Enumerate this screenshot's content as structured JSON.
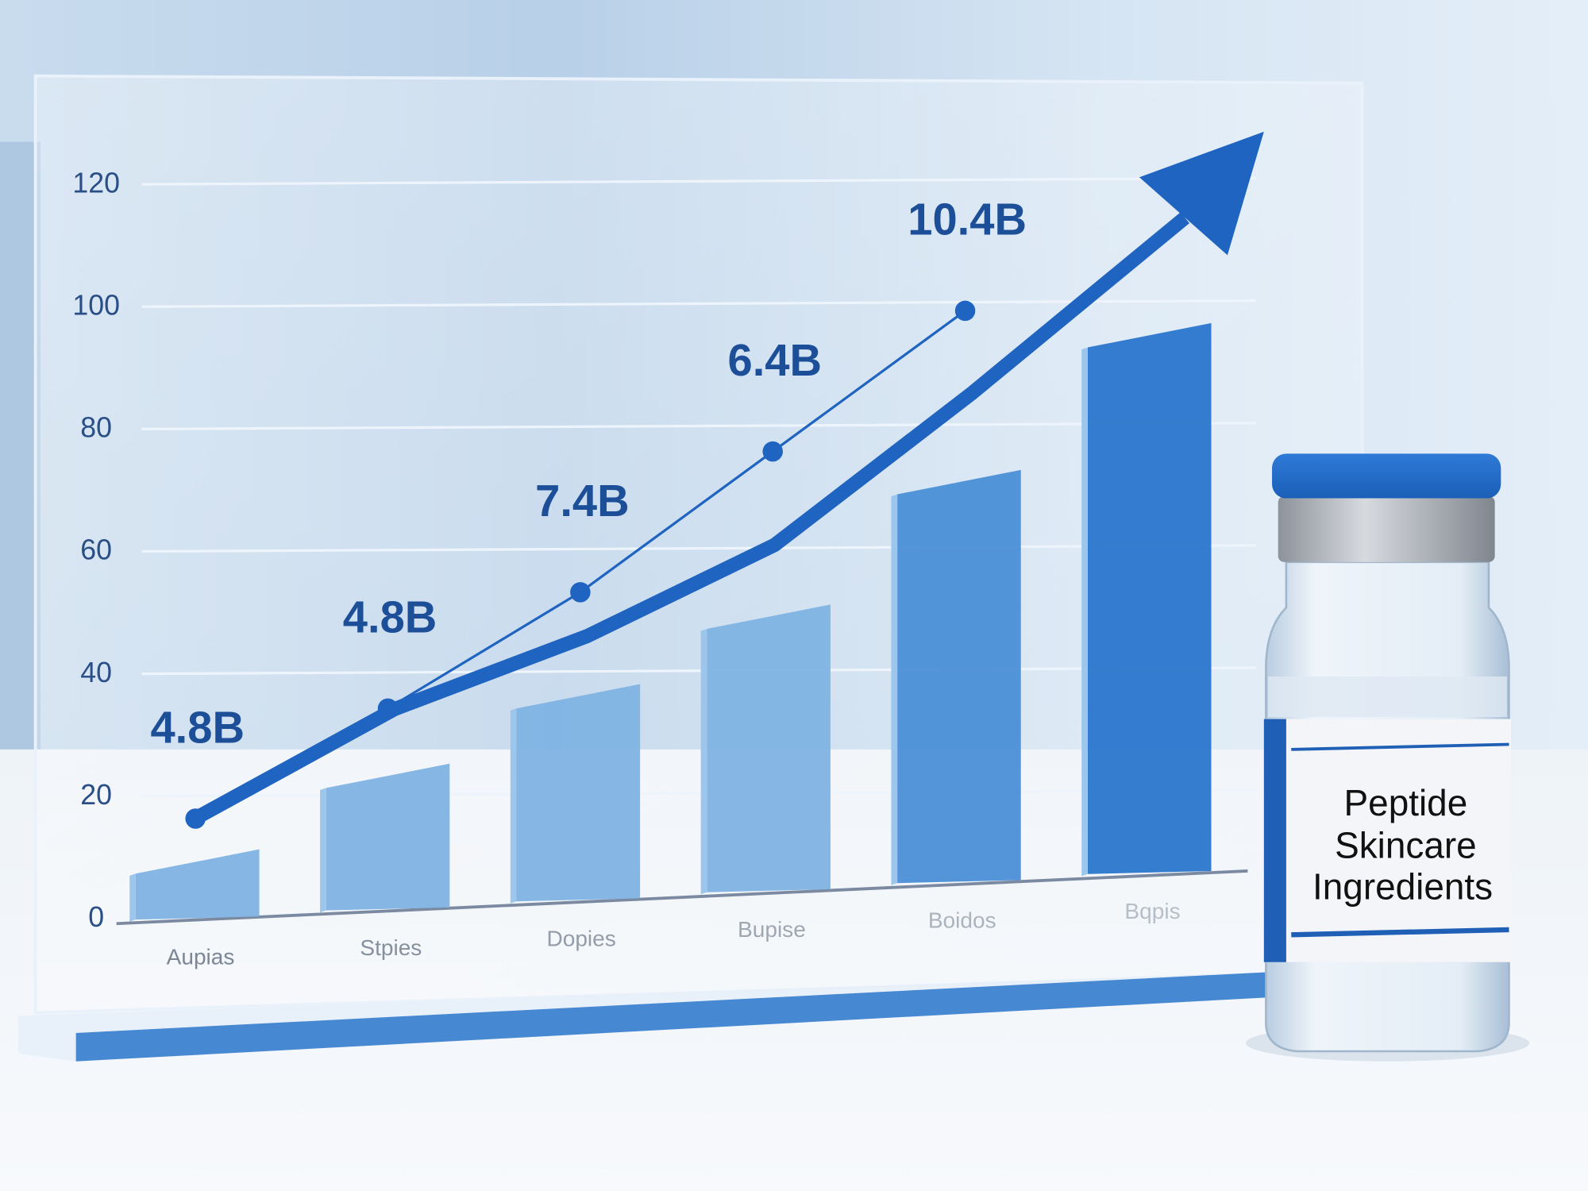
{
  "colors": {
    "accent": "#1f64c0",
    "bar_light": "#7fb3e3",
    "bar_dark": "#2a76cc",
    "label": "#1c4f98",
    "background": "#dbe8f4"
  },
  "chart_data": {
    "type": "bar",
    "categories": [
      "Aupias",
      "Stpies",
      "Dopies",
      "Bupise",
      "Boidos",
      "Bqpis"
    ],
    "values": [
      9,
      23,
      36,
      49,
      71,
      95
    ],
    "line_series": {
      "values": [
        16,
        34,
        53,
        76,
        99
      ],
      "point_labels": [
        "4.8B",
        "4.8B",
        "7.4B",
        "6.4B",
        "10.4B"
      ]
    },
    "trend_arrow": "upward",
    "yticks": [
      "0",
      "20",
      "40",
      "60",
      "80",
      "100",
      "120"
    ],
    "ylim": [
      0,
      120
    ],
    "grid": true,
    "title": "",
    "xlabel": "",
    "ylabel": ""
  },
  "vial": {
    "label_lines": [
      "Peptide",
      "Skincare",
      "Ingredients"
    ]
  }
}
